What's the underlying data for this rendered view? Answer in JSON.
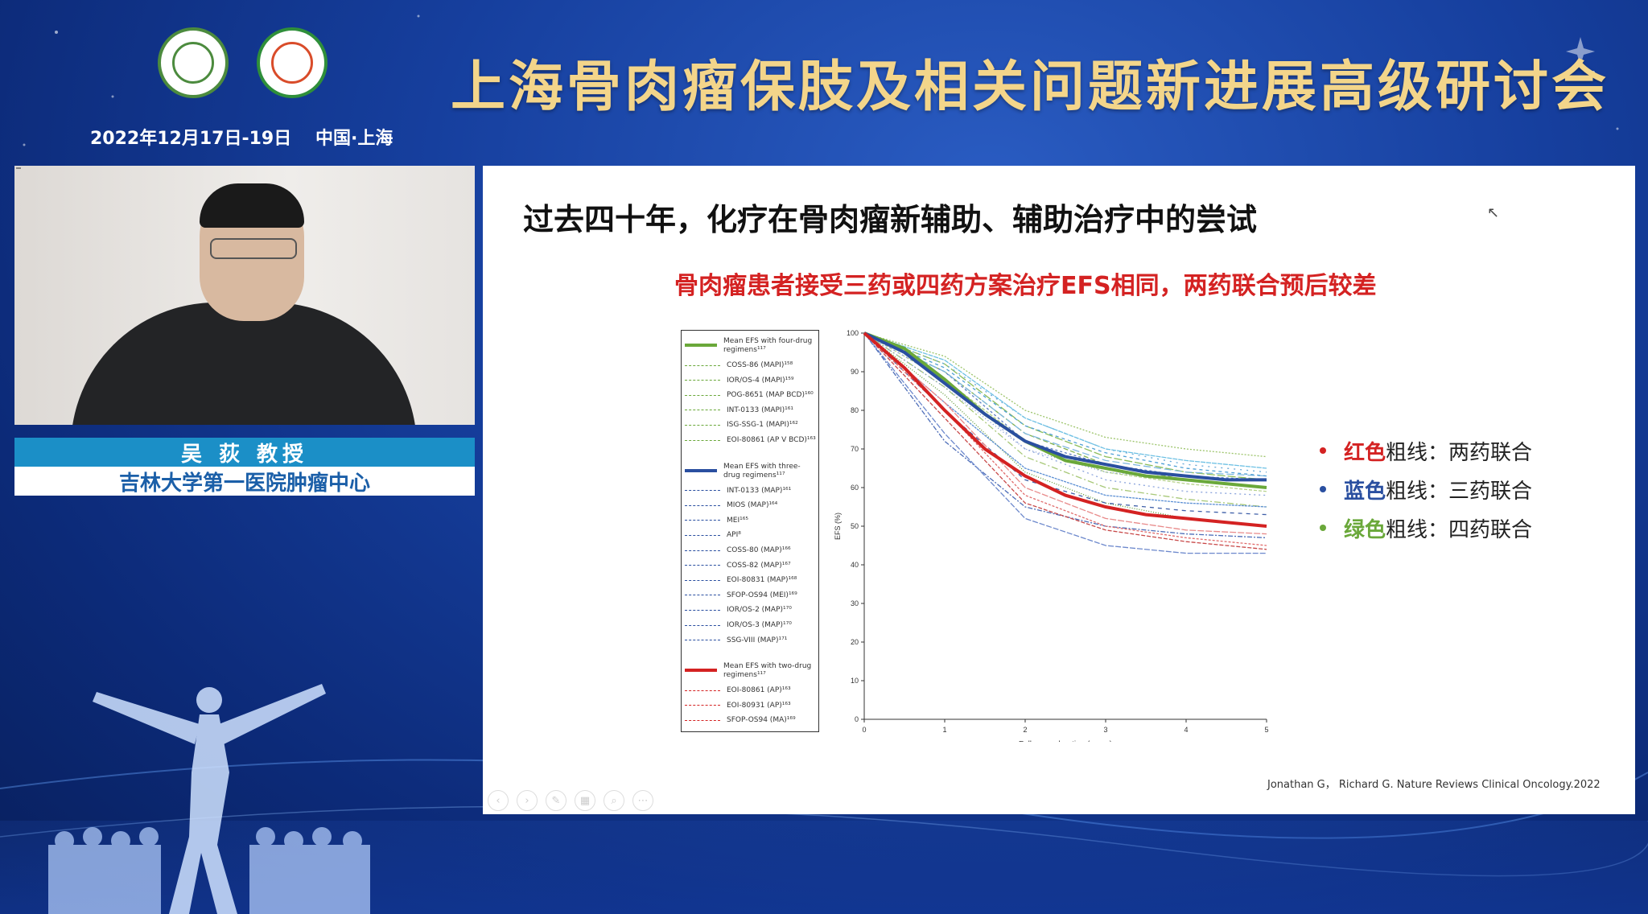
{
  "header": {
    "title": "上海骨肉瘤保肢及相关问题新进展高级研讨会",
    "date": "2022年12月17日-19日",
    "location": "中国·上海"
  },
  "speaker": {
    "name": "吴 荻   教授",
    "affiliation": "吉林大学第一医院肿瘤中心"
  },
  "slide": {
    "title": "过去四十年，化疗在骨肉瘤新辅助、辅助治疗中的尝试",
    "subtitle": "骨肉瘤患者接受三药或四药方案治疗EFS相同，两药联合预后较差",
    "legend": [
      {
        "color_word": "红色",
        "rest": "粗线：两药联合",
        "color": "#d42222"
      },
      {
        "color_word": "蓝色",
        "rest": "粗线：三药联合",
        "color": "#2a4fa0"
      },
      {
        "color_word": "绿色",
        "rest": "粗线：四药联合",
        "color": "#6aa83a"
      }
    ],
    "citation": "Jonathan G， Richard G. Nature Reviews Clinical Oncology.2022"
  },
  "chart_data": {
    "type": "line",
    "xlabel": "Follow-up duration (years)",
    "ylabel": "EFS (%)",
    "xlim": [
      0,
      5
    ],
    "ylim": [
      0,
      100
    ],
    "x_ticks": [
      "0",
      "1",
      "2",
      "3",
      "4",
      "5"
    ],
    "y_ticks": [
      "0",
      "10",
      "20",
      "30",
      "40",
      "50",
      "60",
      "70",
      "80",
      "90",
      "100"
    ],
    "legend_groups": [
      {
        "header": "Mean EFS with four-drug regimens¹¹⁷",
        "color": "#6aa83a",
        "entries": [
          "COSS-86 (MAPI)¹⁵⁸",
          "IOR/OS-4 (MAPI)¹⁵⁹",
          "POG-8651 (MAP BCD)¹⁶⁰",
          "INT-0133 (MAPI)¹⁶¹",
          "ISG-SSG-1 (MAPI)¹⁶²",
          "EOI-80861 (AP V BCD)¹⁶³"
        ]
      },
      {
        "header": "Mean EFS with three-drug regimens¹¹⁷",
        "color": "#2a4fa0",
        "entries": [
          "INT-0133 (MAP)¹⁶¹",
          "MIOS (MAP)¹⁶⁴",
          "MEI¹⁶⁵",
          "API⁸",
          "COSS-80 (MAP)¹⁶⁶",
          "COSS-82 (MAP)¹⁶⁷",
          "EOI-80831 (MAP)¹⁶⁸",
          "SFOP-OS94 (MEI)¹⁶⁹",
          "IOR/OS-2 (MAP)¹⁷⁰",
          "IOR/OS-3 (MAP)¹⁷⁰",
          "SSG-VIII (MAP)¹⁷¹"
        ]
      },
      {
        "header": "Mean EFS with two-drug regimens¹¹⁷",
        "color": "#d42222",
        "entries": [
          "EOI-80861 (AP)¹⁶³",
          "EOI-80931 (AP)¹⁶³",
          "SFOP-OS94 (MA)¹⁶⁹"
        ]
      }
    ],
    "series": [
      {
        "name": "Mean EFS with four-drug regimens",
        "group": 0,
        "thick": true,
        "x": [
          0,
          0.5,
          1,
          1.5,
          2,
          2.5,
          3,
          3.5,
          4,
          4.5,
          5
        ],
        "values": [
          100,
          96,
          88,
          79,
          72,
          67,
          65,
          63,
          62,
          61,
          60
        ]
      },
      {
        "name": "Mean EFS with three-drug regimens",
        "group": 1,
        "thick": true,
        "x": [
          0,
          0.5,
          1,
          1.5,
          2,
          2.5,
          3,
          3.5,
          4,
          4.5,
          5
        ],
        "values": [
          100,
          95,
          87,
          79,
          72,
          68,
          66,
          64,
          63,
          62,
          62
        ]
      },
      {
        "name": "Mean EFS with two-drug regimens",
        "group": 2,
        "thick": true,
        "x": [
          0,
          0.5,
          1,
          1.5,
          2,
          2.5,
          3,
          3.5,
          4,
          4.5,
          5
        ],
        "values": [
          100,
          91,
          80,
          70,
          63,
          58,
          55,
          53,
          52,
          51,
          50
        ]
      },
      {
        "name": "COSS-86 (MAPI)",
        "group": 0,
        "x": [
          0,
          1,
          2,
          3,
          4,
          5
        ],
        "values": [
          100,
          94,
          80,
          73,
          70,
          68
        ]
      },
      {
        "name": "IOR/OS-4 (MAPI)",
        "group": 0,
        "x": [
          0,
          1,
          2,
          3,
          4,
          5
        ],
        "values": [
          100,
          90,
          74,
          66,
          62,
          60
        ]
      },
      {
        "name": "POG-8651 (MAP BCD)",
        "group": 0,
        "x": [
          0,
          1,
          2,
          3,
          4,
          5
        ],
        "values": [
          100,
          86,
          68,
          60,
          57,
          55
        ]
      },
      {
        "name": "INT-0133 (MAPI)",
        "group": 0,
        "x": [
          0,
          1,
          2,
          3,
          4,
          5
        ],
        "values": [
          100,
          84,
          64,
          56,
          52,
          50
        ]
      },
      {
        "name": "ISG-SSG-1 (MAPI)",
        "group": 0,
        "x": [
          0,
          1,
          2,
          3,
          4,
          5
        ],
        "values": [
          100,
          88,
          72,
          64,
          61,
          59
        ]
      },
      {
        "name": "EOI-80861 (AP V BCD)",
        "group": 0,
        "x": [
          0,
          1,
          2,
          3,
          4,
          5
        ],
        "values": [
          100,
          92,
          76,
          68,
          64,
          62
        ]
      },
      {
        "name": "INT-0133 (MAP)",
        "group": 1,
        "x": [
          0,
          1,
          2,
          3,
          4,
          5
        ],
        "values": [
          100,
          90,
          72,
          66,
          63,
          62
        ]
      },
      {
        "name": "MIOS (MAP)",
        "group": 1,
        "x": [
          0,
          1,
          2,
          3,
          4,
          5
        ],
        "values": [
          100,
          86,
          70,
          64,
          62,
          60
        ]
      },
      {
        "name": "MEI",
        "group": 1,
        "x": [
          0,
          1,
          2,
          3,
          4,
          5
        ],
        "values": [
          100,
          72,
          55,
          50,
          48,
          47
        ]
      },
      {
        "name": "API",
        "group": 1,
        "x": [
          0,
          1,
          2,
          3,
          4,
          5
        ],
        "values": [
          100,
          88,
          70,
          62,
          59,
          58
        ]
      },
      {
        "name": "COSS-80 (MAP)",
        "group": 1,
        "x": [
          0,
          1,
          2,
          3,
          4,
          5
        ],
        "values": [
          100,
          80,
          62,
          56,
          54,
          53
        ]
      },
      {
        "name": "COSS-82 (MAP)",
        "group": 1,
        "x": [
          0,
          1,
          2,
          3,
          4,
          5
        ],
        "values": [
          100,
          74,
          52,
          45,
          43,
          43
        ]
      },
      {
        "name": "EOI-80831 (MAP)",
        "group": 1,
        "x": [
          0,
          1,
          2,
          3,
          4,
          5
        ],
        "values": [
          100,
          82,
          65,
          58,
          56,
          55
        ]
      },
      {
        "name": "SFOP-OS94 (MEI)",
        "group": 1,
        "x": [
          0,
          1,
          2,
          3,
          4,
          5
        ],
        "values": [
          100,
          90,
          74,
          67,
          64,
          63
        ]
      },
      {
        "name": "IOR/OS-2 (MAP)",
        "group": 1,
        "x": [
          0,
          1,
          2,
          3,
          4,
          5
        ],
        "values": [
          100,
          92,
          78,
          70,
          66,
          64
        ]
      },
      {
        "name": "IOR/OS-3 (MAP)",
        "group": 1,
        "x": [
          0,
          1,
          2,
          3,
          4,
          5
        ],
        "values": [
          100,
          91,
          76,
          69,
          65,
          63
        ]
      },
      {
        "name": "SSG-VIII (MAP)",
        "group": 1,
        "x": [
          0,
          1,
          2,
          3,
          4,
          5
        ],
        "values": [
          100,
          93,
          78,
          70,
          67,
          65
        ]
      },
      {
        "name": "EOI-80861 (AP)",
        "group": 2,
        "x": [
          0,
          1,
          2,
          3,
          4,
          5
        ],
        "values": [
          100,
          80,
          58,
          50,
          47,
          45
        ]
      },
      {
        "name": "EOI-80931 (AP)",
        "group": 2,
        "x": [
          0,
          1,
          2,
          3,
          4,
          5
        ],
        "values": [
          100,
          78,
          56,
          49,
          46,
          44
        ]
      },
      {
        "name": "SFOP-OS94 (MA)",
        "group": 2,
        "x": [
          0,
          1,
          2,
          3,
          4,
          5
        ],
        "values": [
          100,
          82,
          60,
          52,
          49,
          48
        ]
      }
    ]
  }
}
